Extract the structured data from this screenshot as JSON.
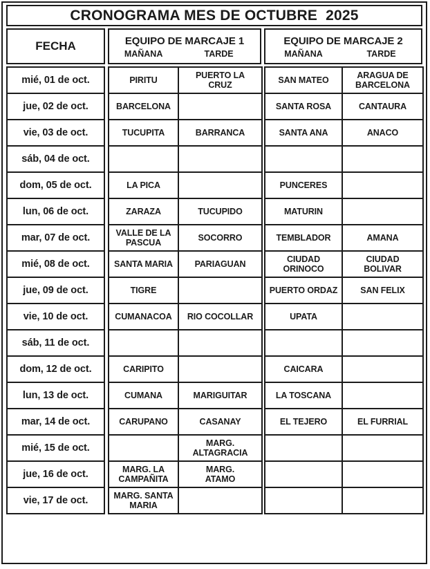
{
  "title": "CRONOGRAMA MES DE OCTUBRE  2025",
  "headers": {
    "fecha": "FECHA",
    "equipo1": "EQUIPO DE MARCAJE 1",
    "equipo2": "EQUIPO DE MARCAJE 2",
    "manana": "MAÑANA",
    "tarde": "TARDE"
  },
  "rows": [
    {
      "fecha": "mié, 01 de oct.",
      "equipo1_manana": "PIRITU",
      "equipo1_tarde": "PUERTO LA\nCRUZ",
      "equipo2_manana": "SAN MATEO",
      "equipo2_tarde": "ARAGUA DE\nBARCELONA"
    },
    {
      "fecha": "jue, 02 de oct.",
      "equipo1_manana": "BARCELONA",
      "equipo1_tarde": "",
      "equipo2_manana": "SANTA ROSA",
      "equipo2_tarde": "CANTAURA"
    },
    {
      "fecha": "vie, 03 de oct.",
      "equipo1_manana": "TUCUPITA",
      "equipo1_tarde": "BARRANCA",
      "equipo2_manana": "SANTA ANA",
      "equipo2_tarde": "ANACO"
    },
    {
      "fecha": "sáb, 04 de oct.",
      "equipo1_manana": "",
      "equipo1_tarde": "",
      "equipo2_manana": "",
      "equipo2_tarde": ""
    },
    {
      "fecha": "dom, 05 de oct.",
      "equipo1_manana": "LA PICA",
      "equipo1_tarde": "",
      "equipo2_manana": "PUNCERES",
      "equipo2_tarde": ""
    },
    {
      "fecha": "lun, 06 de oct.",
      "equipo1_manana": "ZARAZA",
      "equipo1_tarde": "TUCUPIDO",
      "equipo2_manana": "MATURIN",
      "equipo2_tarde": ""
    },
    {
      "fecha": "mar, 07 de oct.",
      "equipo1_manana": "VALLE DE LA\nPASCUA",
      "equipo1_tarde": "SOCORRO",
      "equipo2_manana": "TEMBLADOR",
      "equipo2_tarde": "AMANA"
    },
    {
      "fecha": "mié, 08 de oct.",
      "equipo1_manana": "SANTA MARIA",
      "equipo1_tarde": "PARIAGUAN",
      "equipo2_manana": "CIUDAD\nORINOCO",
      "equipo2_tarde": "CIUDAD\nBOLIVAR"
    },
    {
      "fecha": "jue, 09 de oct.",
      "equipo1_manana": "TIGRE",
      "equipo1_tarde": "",
      "equipo2_manana": "PUERTO ORDAZ",
      "equipo2_tarde": "SAN FELIX"
    },
    {
      "fecha": "vie, 10 de oct.",
      "equipo1_manana": "CUMANACOA",
      "equipo1_tarde": "RIO COCOLLAR",
      "equipo2_manana": "UPATA",
      "equipo2_tarde": ""
    },
    {
      "fecha": "sáb, 11 de oct.",
      "equipo1_manana": "",
      "equipo1_tarde": "",
      "equipo2_manana": "",
      "equipo2_tarde": ""
    },
    {
      "fecha": "dom, 12 de oct.",
      "equipo1_manana": "CARIPITO",
      "equipo1_tarde": "",
      "equipo2_manana": "CAICARA",
      "equipo2_tarde": ""
    },
    {
      "fecha": "lun, 13 de oct.",
      "equipo1_manana": "CUMANA",
      "equipo1_tarde": "MARIGUITAR",
      "equipo2_manana": "LA TOSCANA",
      "equipo2_tarde": ""
    },
    {
      "fecha": "mar, 14 de oct.",
      "equipo1_manana": "CARUPANO",
      "equipo1_tarde": "CASANAY",
      "equipo2_manana": "EL TEJERO",
      "equipo2_tarde": "EL FURRIAL"
    },
    {
      "fecha": "mié, 15 de oct.",
      "equipo1_manana": "",
      "equipo1_tarde": "MARG.\nALTAGRACIA",
      "equipo2_manana": "",
      "equipo2_tarde": ""
    },
    {
      "fecha": "jue, 16 de oct.",
      "equipo1_manana": "MARG. LA\nCAMPAÑITA",
      "equipo1_tarde": "MARG.\nATAMO",
      "equipo2_manana": "",
      "equipo2_tarde": ""
    },
    {
      "fecha": "vie, 17 de oct.",
      "equipo1_manana": "MARG. SANTA\nMARIA",
      "equipo1_tarde": "",
      "equipo2_manana": "",
      "equipo2_tarde": ""
    }
  ]
}
